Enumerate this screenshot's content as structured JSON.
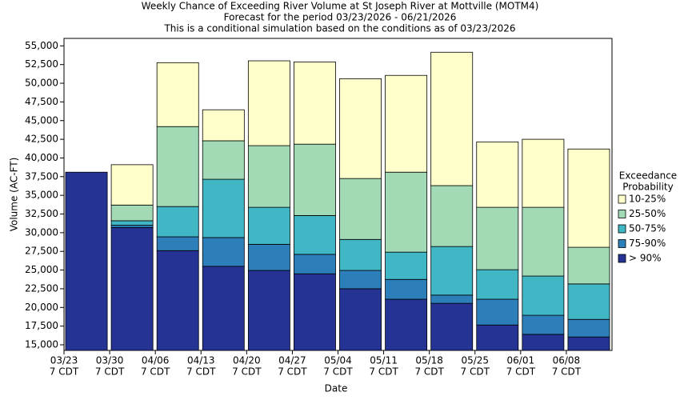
{
  "chart_data": {
    "type": "bar",
    "title": [
      "Weekly Chance of Exceeding River Volume at St Joseph River at Mottville (MOTM4)",
      "Forecast for the period 03/23/2026 - 06/21/2026",
      "This is a conditional simulation based on the conditions as of 03/23/2026"
    ],
    "xlabel": "Date",
    "ylabel": "Volume (AC-FT)",
    "categories": [
      "03/23",
      "03/30",
      "04/06",
      "04/13",
      "04/20",
      "04/27",
      "05/04",
      "05/11",
      "05/18",
      "05/25",
      "06/01",
      "06/08"
    ],
    "tick_sublabel": "7 CDT",
    "legend_title": [
      "Exceedance",
      "Probability"
    ],
    "series": [
      {
        "name": "> 90%",
        "color": "#253494",
        "values": [
          38100,
          30700,
          27600,
          25500,
          24950,
          24500,
          22500,
          21100,
          20550,
          17650,
          16400,
          16050
        ]
      },
      {
        "name": "75-90%",
        "color": "#2c7fb8",
        "values": [
          38100,
          31000,
          29450,
          29350,
          28450,
          27100,
          24950,
          23750,
          21650,
          21100,
          18950,
          18400
        ]
      },
      {
        "name": "50-75%",
        "color": "#41b6c4",
        "values": [
          38100,
          31600,
          33500,
          37150,
          33400,
          32300,
          29100,
          27400,
          28150,
          25050,
          24200,
          23150
        ]
      },
      {
        "name": "25-50%",
        "color": "#a1dab4",
        "values": [
          38100,
          33700,
          44200,
          42300,
          41650,
          41850,
          37250,
          38100,
          36300,
          33400,
          33400,
          28050
        ]
      },
      {
        "name": "10-25%",
        "color": "#ffffcc",
        "values": [
          38100,
          39100,
          52750,
          46450,
          53000,
          52850,
          50600,
          51050,
          54150,
          42150,
          42500,
          41200
        ]
      }
    ],
    "ylim": [
      14250,
      56000
    ],
    "yticks": [
      {
        "value": 15000,
        "label": "15,000"
      },
      {
        "value": 17500,
        "label": "17,500"
      },
      {
        "value": 20000,
        "label": "20,000"
      },
      {
        "value": 22500,
        "label": "22,500"
      },
      {
        "value": 25000,
        "label": "25,000"
      },
      {
        "value": 27500,
        "label": "27,500"
      },
      {
        "value": 30000,
        "label": "30,000"
      },
      {
        "value": 32500,
        "label": "32,500"
      },
      {
        "value": 35000,
        "label": "35,000"
      },
      {
        "value": 37500,
        "label": "37,500"
      },
      {
        "value": 40000,
        "label": "40,000"
      },
      {
        "value": 42500,
        "label": "42,500"
      },
      {
        "value": 45000,
        "label": "45,000"
      },
      {
        "value": 47500,
        "label": "47,500"
      },
      {
        "value": 50000,
        "label": "50,000"
      },
      {
        "value": 52500,
        "label": "52,500"
      },
      {
        "value": 55000,
        "label": "55,000"
      }
    ],
    "legend": "right"
  }
}
